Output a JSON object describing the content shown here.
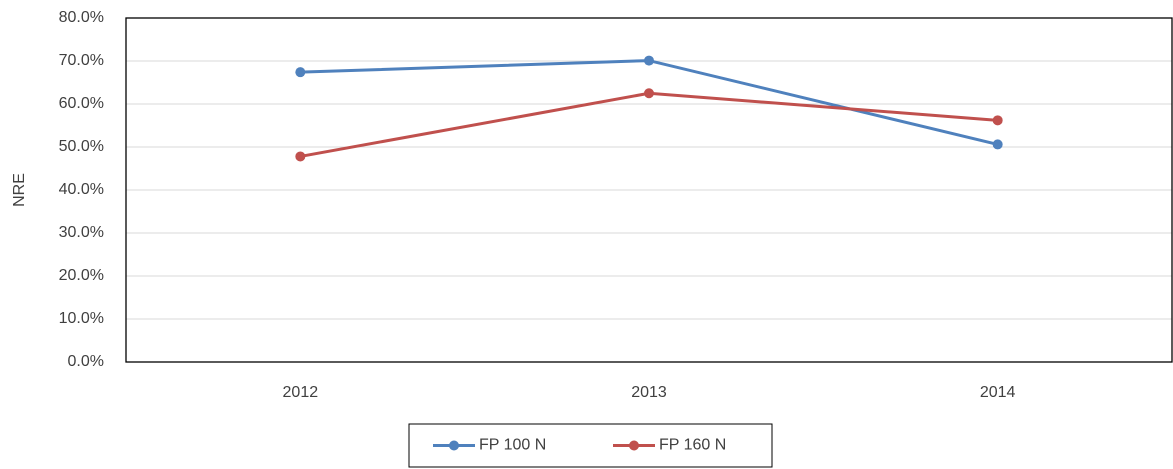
{
  "chart_data": {
    "type": "line",
    "y_label": "NRE",
    "categories": [
      "2012",
      "2013",
      "2014"
    ],
    "series": [
      {
        "name": "FP 100 N",
        "color": "#4f81bd",
        "values": [
          67.4,
          70.1,
          50.6
        ]
      },
      {
        "name": "FP 160 N",
        "color": "#c0504d",
        "values": [
          47.8,
          62.5,
          56.2
        ]
      }
    ],
    "ylim": [
      0,
      80
    ],
    "yticks": [
      {
        "value": 0,
        "label": "0.0%"
      },
      {
        "value": 10,
        "label": "10.0%"
      },
      {
        "value": 20,
        "label": "20.0%"
      },
      {
        "value": 30,
        "label": "30.0%"
      },
      {
        "value": 40,
        "label": "40.0%"
      },
      {
        "value": 50,
        "label": "50.0%"
      },
      {
        "value": 60,
        "label": "60.0%"
      },
      {
        "value": 70,
        "label": "70.0%"
      },
      {
        "value": 80,
        "label": "80.0%"
      }
    ],
    "grid": true,
    "legend": "bottom"
  }
}
